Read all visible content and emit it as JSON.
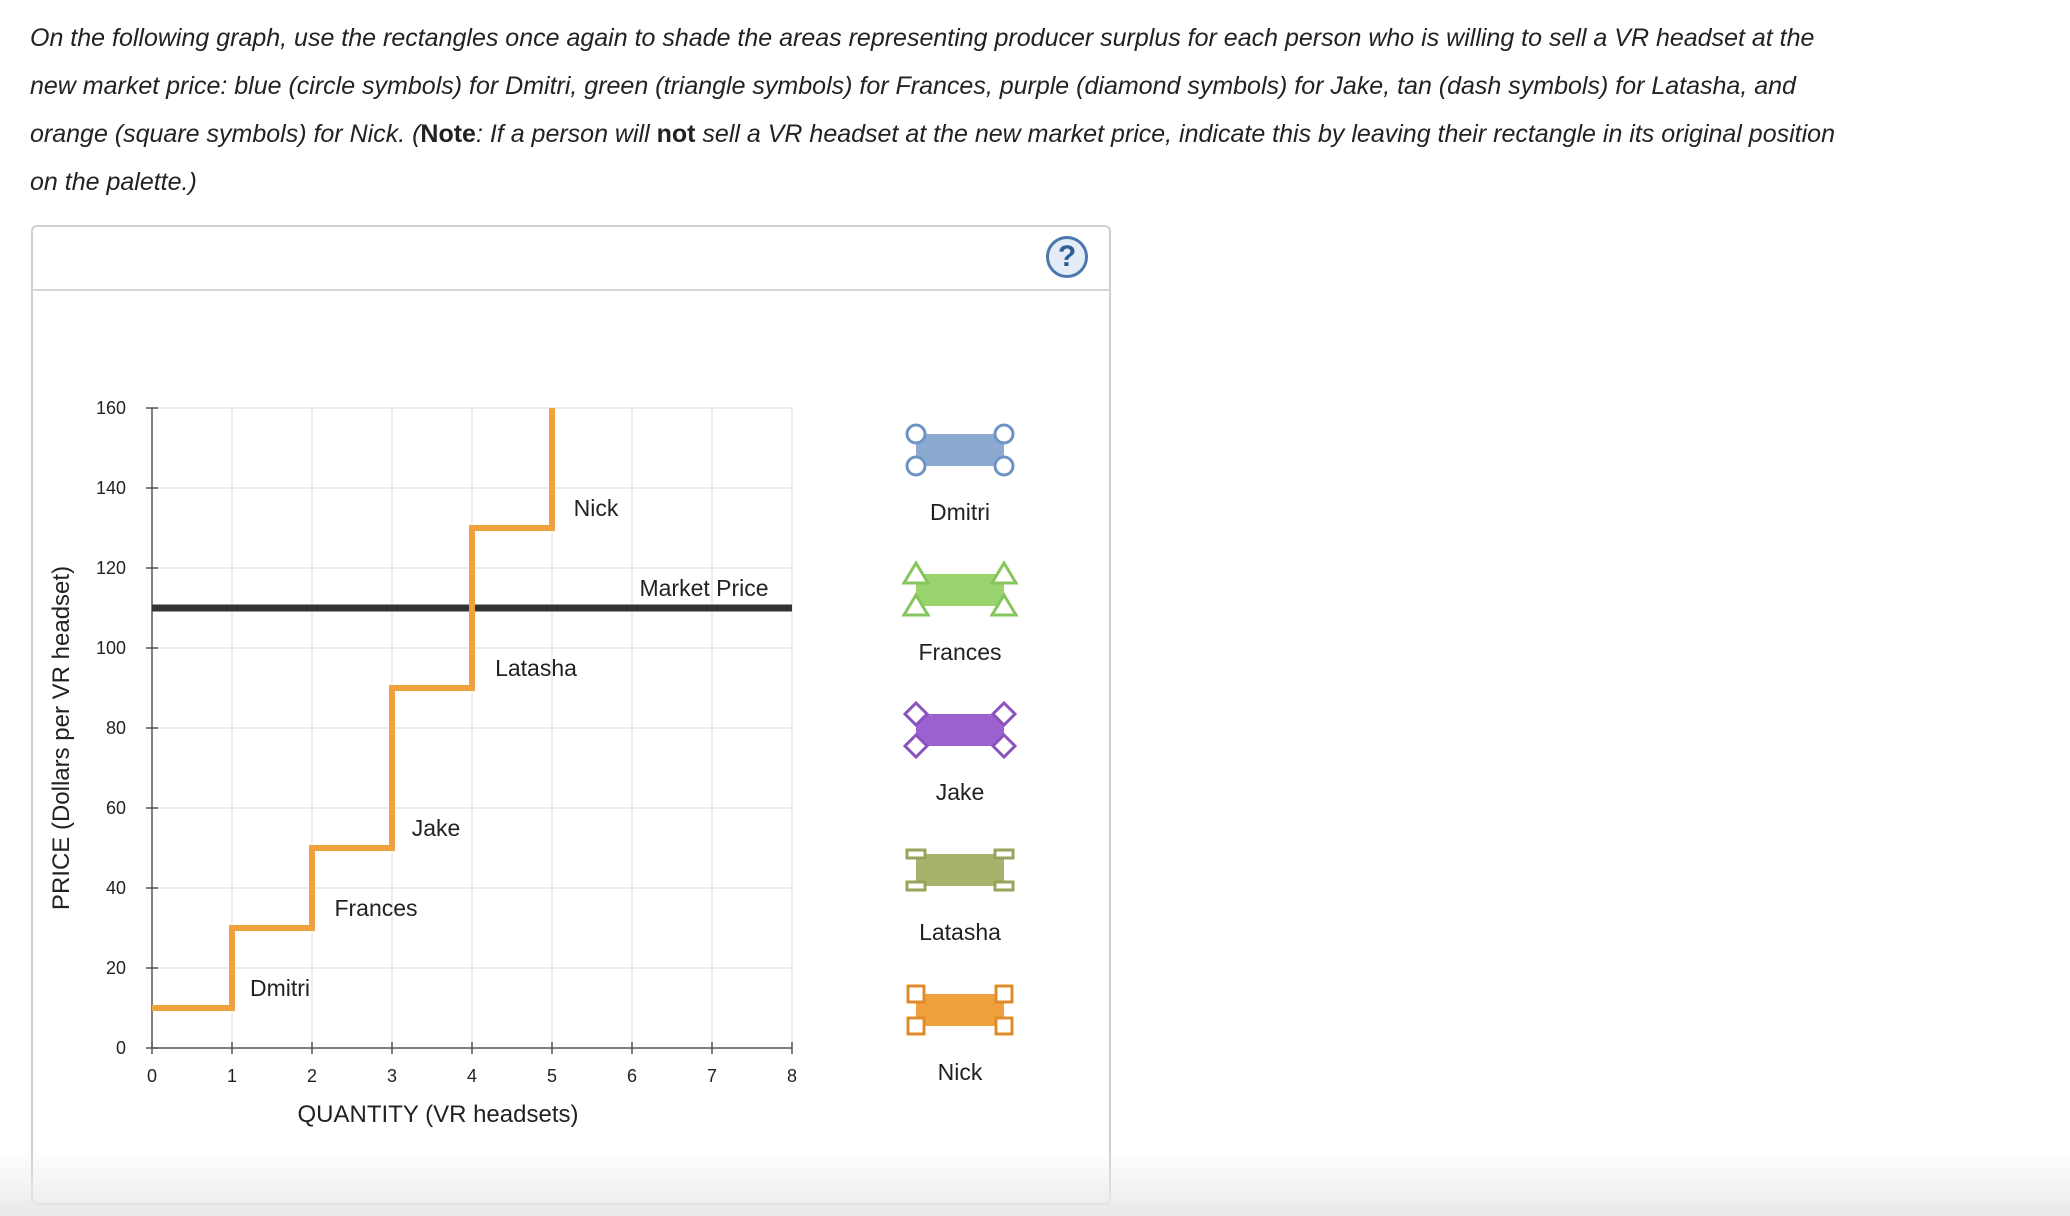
{
  "instructions": {
    "part1": "On the following graph, use the rectangles once again to shade the areas representing producer surplus for each person who is willing to sell a VR headset at the new market price: blue (circle symbols) for Dmitri, green (triangle symbols) for Frances, purple (diamond symbols) for Jake, tan (dash symbols) for Latasha, and orange (square symbols) for Nick. (",
    "note_label": "Note",
    "part2": ": If a person will ",
    "not_word": "not",
    "part3": " sell a VR headset at the new market price, indicate this by leaving their rectangle in its original position on the palette.)"
  },
  "help_button": {
    "label": "?"
  },
  "chart_data": {
    "type": "line",
    "xlabel": "QUANTITY (VR headsets)",
    "ylabel": "PRICE (Dollars per VR headset)",
    "xlim": [
      0,
      8
    ],
    "ylim": [
      0,
      160
    ],
    "x_ticks": [
      0,
      1,
      2,
      3,
      4,
      5,
      6,
      7,
      8
    ],
    "y_ticks": [
      0,
      20,
      40,
      60,
      80,
      100,
      120,
      140,
      160
    ],
    "grid": true,
    "supply_step": {
      "color": "#f0a03c",
      "points": [
        [
          0,
          10
        ],
        [
          1,
          10
        ],
        [
          1,
          30
        ],
        [
          2,
          30
        ],
        [
          2,
          50
        ],
        [
          3,
          50
        ],
        [
          3,
          90
        ],
        [
          4,
          90
        ],
        [
          4,
          130
        ],
        [
          5,
          130
        ],
        [
          5,
          160
        ]
      ]
    },
    "market_price": {
      "label": "Market Price",
      "value": 110,
      "color": "#333333"
    },
    "step_labels": [
      {
        "text": "Dmitri",
        "x": 1.6,
        "y": 15
      },
      {
        "text": "Frances",
        "x": 2.8,
        "y": 35
      },
      {
        "text": "Jake",
        "x": 3.55,
        "y": 55
      },
      {
        "text": "Latasha",
        "x": 4.8,
        "y": 95
      },
      {
        "text": "Nick",
        "x": 5.55,
        "y": 135
      }
    ]
  },
  "palette": [
    {
      "name": "Dmitri",
      "fill": "#8aaad2",
      "stroke": "#6d93c2",
      "symbol": "circle"
    },
    {
      "name": "Frances",
      "fill": "#9ad46f",
      "stroke": "#86c45c",
      "symbol": "triangle"
    },
    {
      "name": "Jake",
      "fill": "#9b62cf",
      "stroke": "#8a52bf",
      "symbol": "diamond"
    },
    {
      "name": "Latasha",
      "fill": "#a9b26a",
      "stroke": "#99a25a",
      "symbol": "dash"
    },
    {
      "name": "Nick",
      "fill": "#f0a03c",
      "stroke": "#e08c2a",
      "symbol": "square"
    }
  ]
}
